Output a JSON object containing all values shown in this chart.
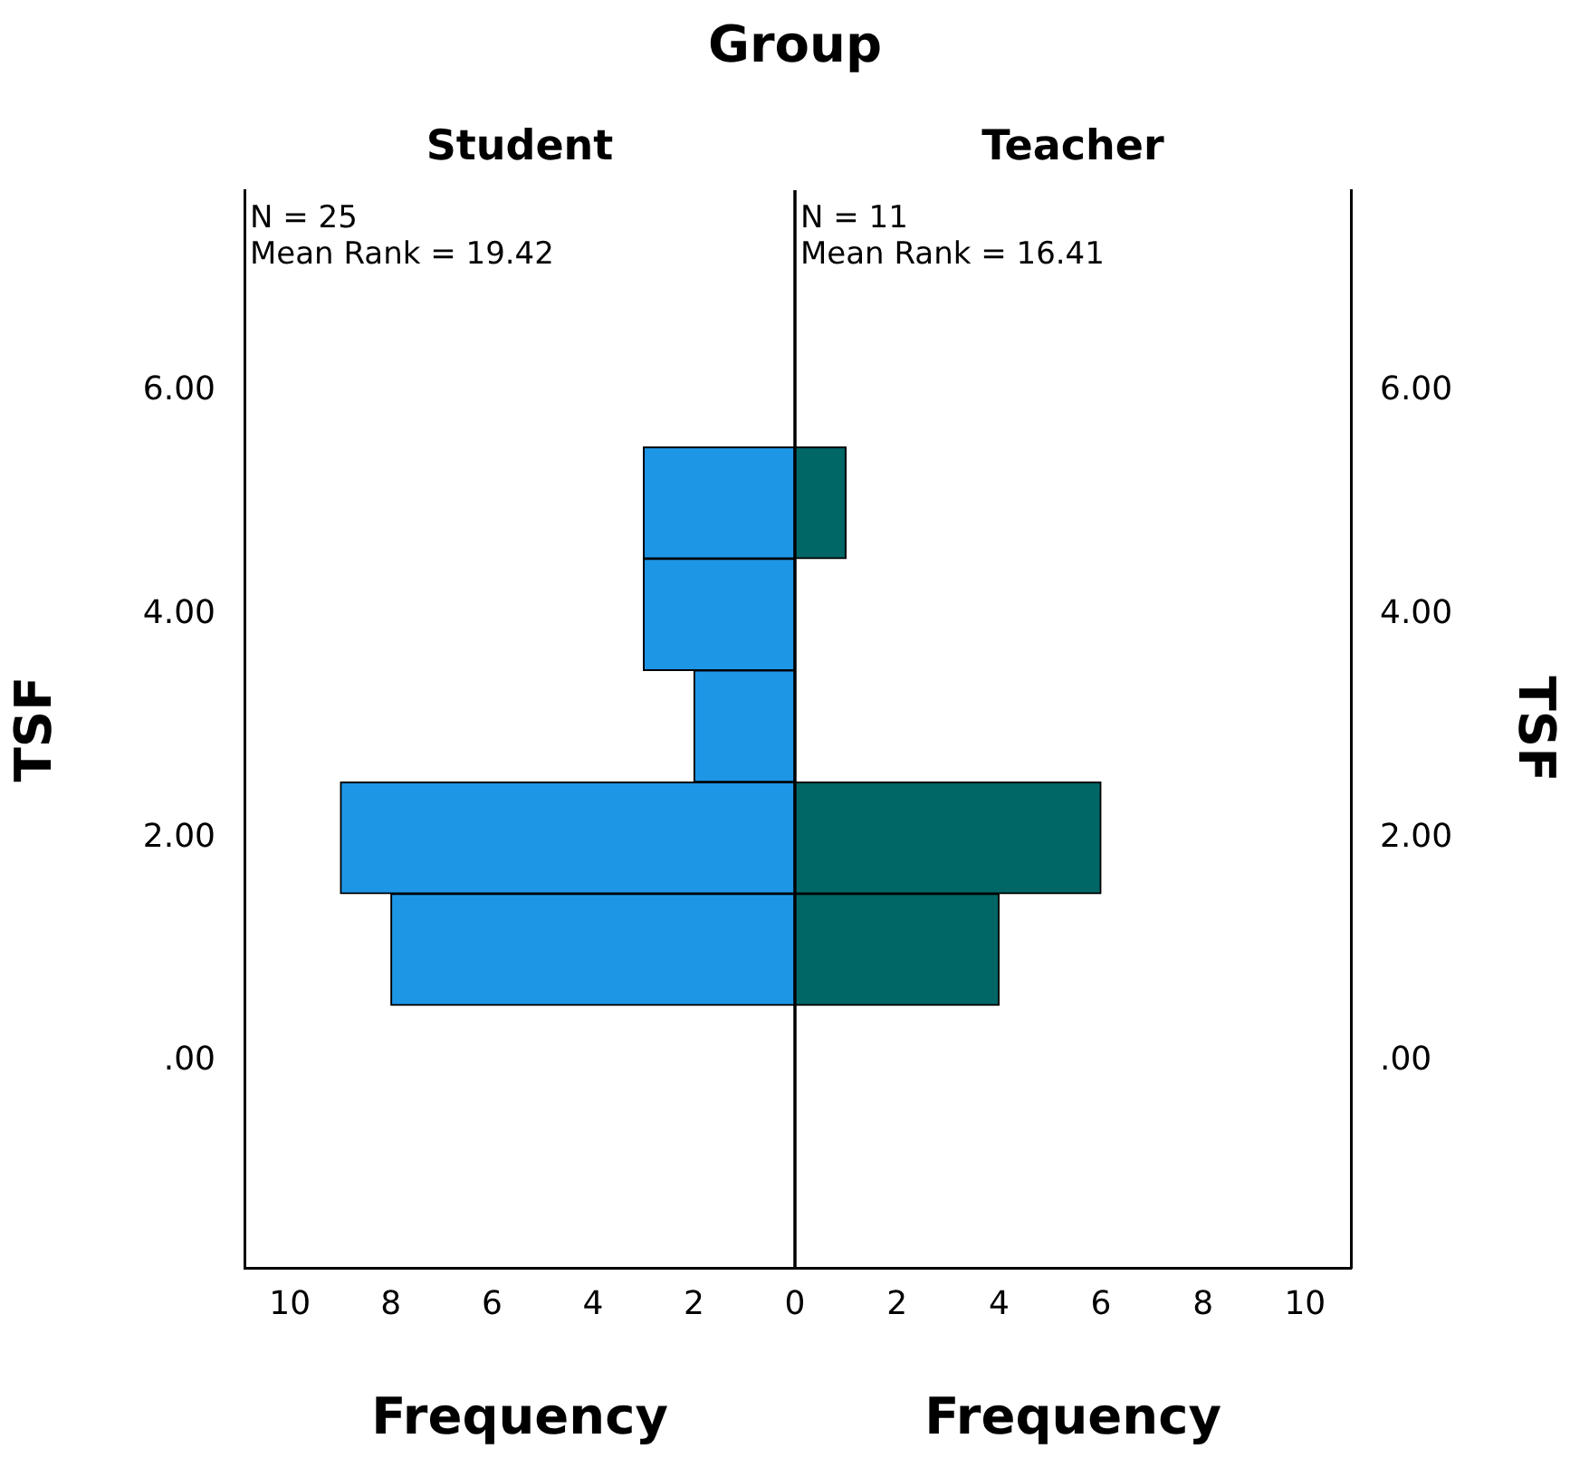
{
  "chart_data": [
    {
      "type": "histogram",
      "title": "Group",
      "subtitle": "Student",
      "xlabel": "Frequency",
      "ylabel": "TSF",
      "annotations": [
        "N = 25",
        "Mean Rank = 19.42"
      ],
      "orientation": "horizontal",
      "bins": [
        0.5,
        1.5,
        2.5,
        3.5,
        4.5,
        5.5
      ],
      "values": [
        8,
        9,
        2,
        3,
        3
      ],
      "color": "#1e96e6",
      "xlim": [
        10.9,
        0
      ],
      "xticks": [
        10,
        8,
        6,
        4,
        2
      ],
      "ylim": [
        -1.85,
        7.8
      ],
      "yticks": [
        {
          "value": 0,
          "label": ".00"
        },
        {
          "value": 2,
          "label": "2.00"
        },
        {
          "value": 4,
          "label": "4.00"
        },
        {
          "value": 6,
          "label": "6.00"
        }
      ]
    },
    {
      "type": "histogram",
      "subtitle": "Teacher",
      "xlabel": "Frequency",
      "ylabel": "TSF",
      "annotations": [
        "N = 11",
        "Mean Rank = 16.41"
      ],
      "orientation": "horizontal",
      "bins": [
        0.5,
        1.5,
        2.5,
        3.5,
        4.5,
        5.5
      ],
      "values": [
        4,
        6,
        0,
        0,
        1
      ],
      "color": "#006666",
      "xlim": [
        0,
        10.9
      ],
      "xticks": [
        0,
        2,
        4,
        6,
        8,
        10
      ],
      "ylim": [
        -1.85,
        7.8
      ],
      "yticks": [
        {
          "value": 0,
          "label": ".00"
        },
        {
          "value": 2,
          "label": "2.00"
        },
        {
          "value": 4,
          "label": "4.00"
        },
        {
          "value": 6,
          "label": "6.00"
        }
      ]
    }
  ]
}
